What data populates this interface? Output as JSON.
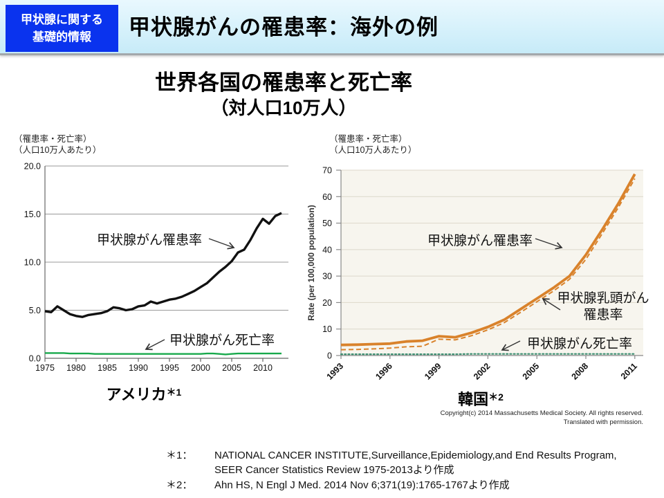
{
  "header": {
    "badge_line1": "甲状腺に関する",
    "badge_line2": "基礎的情報",
    "title": "甲状腺がんの罹患率：海外の例"
  },
  "main_title": {
    "line1": "世界各国の罹患率と死亡率",
    "line2": "（対人口10万人）"
  },
  "colors": {
    "badge_blue": "#0a33ee",
    "header_band": "#cdeefa",
    "us_incidence": "#111111",
    "us_mortality": "#17a94b",
    "kr_orange": "#d9822b",
    "kr_mortality_teal": "#3d8f72",
    "kr_plot_bg": "#f7f5ee"
  },
  "chart_data": [
    {
      "id": "us",
      "type": "line",
      "country_label": "アメリカ",
      "country_ref": "＊1",
      "unit_label": [
        "（罹患率・死亡率）",
        "（人口10万人あたり）"
      ],
      "x": [
        1975,
        1976,
        1977,
        1978,
        1979,
        1980,
        1981,
        1982,
        1983,
        1984,
        1985,
        1986,
        1987,
        1988,
        1989,
        1990,
        1991,
        1992,
        1993,
        1994,
        1995,
        1996,
        1997,
        1998,
        1999,
        2000,
        2001,
        2002,
        2003,
        2004,
        2005,
        2006,
        2007,
        2008,
        2009,
        2010,
        2011,
        2012,
        2013
      ],
      "xticks": [
        1975,
        1980,
        1985,
        1990,
        1995,
        2000,
        2005,
        2010
      ],
      "ylim": [
        0,
        20
      ],
      "yticks": [
        "0.0",
        "5.0",
        "10.0",
        "15.0",
        "20.0"
      ],
      "grid": true,
      "series": [
        {
          "name": "甲状腺がん罹患率",
          "color": "#111111",
          "style": "solid",
          "values": [
            4.9,
            4.8,
            5.4,
            5.0,
            4.6,
            4.4,
            4.3,
            4.5,
            4.6,
            4.7,
            4.9,
            5.3,
            5.2,
            5.0,
            5.1,
            5.4,
            5.5,
            5.9,
            5.7,
            5.9,
            6.1,
            6.2,
            6.4,
            6.7,
            7.0,
            7.4,
            7.8,
            8.4,
            9.0,
            9.5,
            10.1,
            11.0,
            11.3,
            12.3,
            13.5,
            14.5,
            14.0,
            14.8,
            15.1
          ]
        },
        {
          "name": "甲状腺がん死亡率",
          "color": "#17a94b",
          "style": "solid",
          "values": [
            0.55,
            0.55,
            0.55,
            0.55,
            0.5,
            0.5,
            0.5,
            0.5,
            0.45,
            0.45,
            0.45,
            0.45,
            0.45,
            0.45,
            0.45,
            0.45,
            0.45,
            0.45,
            0.45,
            0.45,
            0.45,
            0.45,
            0.45,
            0.45,
            0.45,
            0.45,
            0.5,
            0.5,
            0.45,
            0.4,
            0.45,
            0.5,
            0.5,
            0.5,
            0.5,
            0.5,
            0.5,
            0.5,
            0.5
          ]
        }
      ],
      "annotations": [
        {
          "text": "甲状腺がん罹患率"
        },
        {
          "text": "甲状腺がん死亡率"
        }
      ]
    },
    {
      "id": "korea",
      "type": "line",
      "country_label": "韓国",
      "country_ref": "＊2",
      "unit_label": [
        "（罹患率・死亡率）",
        "（人口10万人あたり）"
      ],
      "ylabel": "Rate (per 100,000 population)",
      "x": [
        1993,
        1994,
        1995,
        1996,
        1997,
        1998,
        1999,
        2000,
        2001,
        2002,
        2003,
        2004,
        2005,
        2006,
        2007,
        2008,
        2009,
        2010,
        2011
      ],
      "xticks": [
        1993,
        1996,
        1999,
        2002,
        2005,
        2008,
        2011
      ],
      "ylim": [
        0,
        70
      ],
      "yticks": [
        "0",
        "10",
        "20",
        "30",
        "40",
        "50",
        "60",
        "70"
      ],
      "grid": true,
      "series": [
        {
          "name": "甲状腺がん罹患率",
          "color": "#d9822b",
          "style": "solid",
          "values": [
            4.0,
            4.1,
            4.3,
            4.5,
            5.3,
            5.6,
            7.3,
            6.9,
            8.6,
            10.8,
            13.5,
            17.5,
            21.5,
            25.5,
            30.0,
            38.0,
            47.5,
            57.5,
            68.5
          ]
        },
        {
          "name": "甲状腺乳頭がん罹患率",
          "color": "#d9822b",
          "style": "dashed",
          "values": [
            2.2,
            2.3,
            2.5,
            2.8,
            3.3,
            3.5,
            6.2,
            5.9,
            7.5,
            9.7,
            12.4,
            16.3,
            20.3,
            24.3,
            28.8,
            36.3,
            46.0,
            56.0,
            66.8
          ]
        },
        {
          "name": "甲状腺がん死亡率",
          "color": "#3d8f72",
          "style": "dotted",
          "values": [
            0.5,
            0.5,
            0.5,
            0.5,
            0.5,
            0.5,
            0.5,
            0.5,
            0.6,
            0.6,
            0.6,
            0.6,
            0.6,
            0.6,
            0.6,
            0.6,
            0.6,
            0.6,
            0.6
          ]
        }
      ],
      "annotations": [
        {
          "text": "甲状腺がん罹患率"
        },
        {
          "line1": "甲状腺乳頭がん",
          "line2": "罹患率"
        },
        {
          "text": "甲状腺がん死亡率"
        }
      ],
      "copyright": [
        "Copyright(c) 2014 Massachusetts Medical Society. All rights reserved.",
        "Translated with permission."
      ]
    }
  ],
  "footnotes": [
    {
      "label": "＊1：",
      "lines": [
        "NATIONAL CANCER INSTITUTE,Surveillance,Epidemiology,and End Results Program,",
        "SEER Cancer Statistics Review 1975-2013より作成"
      ]
    },
    {
      "label": "＊2：",
      "lines": [
        "Ahn HS, N Engl J Med. 2014 Nov 6;371(19):1765-1767より作成"
      ]
    }
  ]
}
